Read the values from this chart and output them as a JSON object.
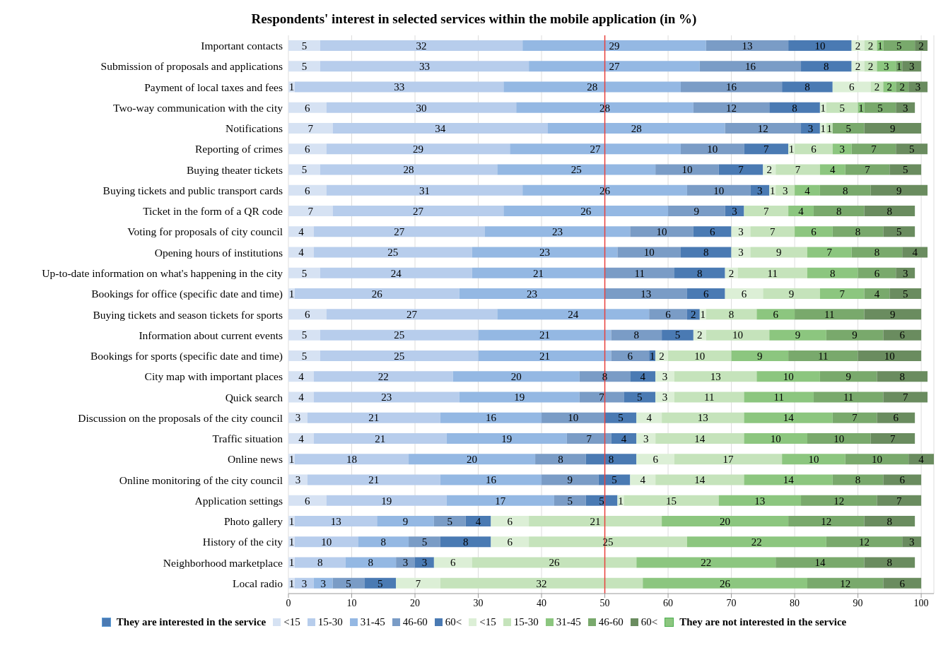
{
  "chart_data": {
    "type": "bar",
    "orientation": "horizontal",
    "stacked": true,
    "title": "Respondents' interest in selected services within the mobile application (in %)",
    "categories": [
      "Important contacts",
      "Submission of proposals and applications",
      "Payment of local taxes and fees",
      "Two-way communication with the city",
      "Notifications",
      "Reporting of crimes",
      "Buying theater tickets",
      "Buying tickets and public transport cards",
      "Ticket in the form of a QR code",
      "Voting for proposals of city council",
      "Opening hours of institutions",
      "Up-to-date information on what's happening in the city",
      "Bookings for office (specific date and time)",
      "Buying tickets and season tickets for sports",
      "Information about current events",
      "Bookings for sports (specific date and time)",
      "City map with important places",
      "Quick search",
      "Discussion on the proposals of the city council",
      "Traffic situation",
      "Online news",
      "Online monitoring of the city council",
      "Application settings",
      "Photo gallery",
      "History of the city",
      "Neighborhood marketplace",
      "Local radio"
    ],
    "series": [
      {
        "name": "<15",
        "color": "#d6e2f3",
        "values": [
          5,
          5,
          1,
          6,
          7,
          6,
          5,
          6,
          7,
          4,
          4,
          5,
          1,
          6,
          5,
          5,
          4,
          4,
          3,
          4,
          1,
          3,
          6,
          1,
          1,
          1,
          1
        ]
      },
      {
        "name": "15-30",
        "color": "#b7cdec",
        "values": [
          32,
          33,
          33,
          30,
          34,
          29,
          28,
          31,
          27,
          27,
          25,
          24,
          26,
          27,
          25,
          25,
          22,
          23,
          21,
          21,
          18,
          21,
          19,
          13,
          10,
          8,
          3
        ]
      },
      {
        "name": "31-45",
        "color": "#94b8e3",
        "values": [
          29,
          27,
          28,
          28,
          28,
          27,
          25,
          26,
          26,
          23,
          23,
          21,
          23,
          24,
          21,
          21,
          20,
          19,
          16,
          19,
          20,
          16,
          17,
          9,
          8,
          8,
          3
        ]
      },
      {
        "name": "46-60",
        "color": "#7a9cc6",
        "values": [
          13,
          16,
          16,
          12,
          12,
          10,
          10,
          10,
          9,
          10,
          10,
          11,
          13,
          6,
          8,
          6,
          8,
          7,
          10,
          7,
          8,
          9,
          5,
          5,
          5,
          3,
          5
        ]
      },
      {
        "name": "60<",
        "color": "#4a7ab3",
        "values": [
          10,
          8,
          8,
          8,
          3,
          7,
          7,
          3,
          3,
          6,
          8,
          8,
          6,
          2,
          5,
          1,
          4,
          5,
          5,
          4,
          8,
          5,
          5,
          4,
          8,
          3,
          5
        ]
      },
      {
        "name": "<15",
        "color": "#dcefd6",
        "values": [
          2,
          2,
          6,
          1,
          1,
          1,
          2,
          1,
          null,
          3,
          3,
          2,
          6,
          1,
          2,
          2,
          3,
          3,
          4,
          3,
          6,
          4,
          1,
          6,
          6,
          6,
          7
        ]
      },
      {
        "name": "15-30",
        "color": "#c5e3bb",
        "values": [
          2,
          2,
          2,
          5,
          1,
          6,
          7,
          3,
          7,
          7,
          9,
          11,
          9,
          8,
          10,
          10,
          13,
          11,
          13,
          14,
          17,
          14,
          15,
          21,
          25,
          26,
          32
        ]
      },
      {
        "name": "31-45",
        "color": "#8cc67f",
        "values": [
          1,
          3,
          2,
          1,
          null,
          3,
          4,
          4,
          4,
          6,
          7,
          8,
          7,
          6,
          9,
          9,
          10,
          11,
          14,
          10,
          10,
          14,
          13,
          20,
          22,
          22,
          26
        ]
      },
      {
        "name": "46-60",
        "color": "#79a96c",
        "values": [
          5,
          1,
          2,
          5,
          5,
          7,
          7,
          8,
          8,
          8,
          8,
          6,
          4,
          11,
          9,
          11,
          9,
          11,
          7,
          10,
          10,
          8,
          12,
          12,
          12,
          14,
          12
        ]
      },
      {
        "name": "60<",
        "color": "#6a8c5f",
        "values": [
          2,
          3,
          3,
          3,
          9,
          5,
          5,
          9,
          8,
          5,
          4,
          3,
          5,
          9,
          6,
          10,
          8,
          7,
          6,
          7,
          4,
          6,
          7,
          8,
          3,
          8,
          6
        ]
      }
    ],
    "xlim": [
      0,
      102
    ],
    "xticks": [
      0,
      10,
      20,
      30,
      40,
      50,
      60,
      70,
      80,
      90,
      100
    ],
    "grid": "x",
    "data_labels": true,
    "legend": "bottom",
    "ref_lines": [
      {
        "axis": "x",
        "value": 50,
        "color": "#e8403c"
      }
    ],
    "annotations": [
      "They are interested in the service",
      "They are not interested in the service"
    ]
  }
}
